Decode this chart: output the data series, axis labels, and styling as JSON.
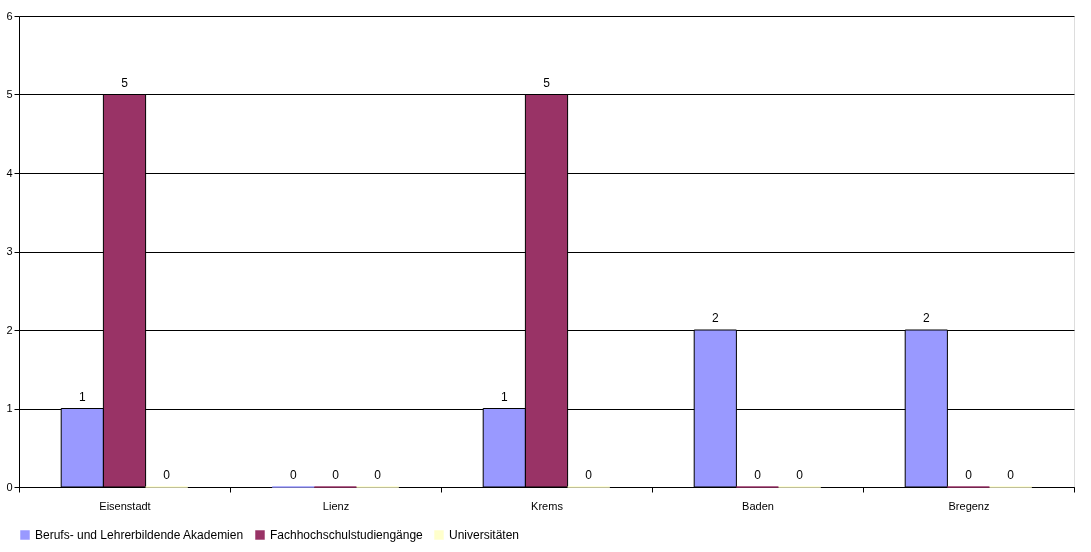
{
  "chart_data": {
    "type": "bar",
    "categories": [
      "Eisenstadt",
      "Lienz",
      "Krems",
      "Baden",
      "Bregenz"
    ],
    "series": [
      {
        "name": "Berufs- und Lehrerbildende Akademien",
        "color": "#9999ff",
        "values": [
          1,
          0,
          1,
          2,
          2
        ]
      },
      {
        "name": "Fachhochschulstudiengänge",
        "color": "#993366",
        "values": [
          5,
          0,
          5,
          0,
          0
        ]
      },
      {
        "name": "Universitäten",
        "color": "#ffffcc",
        "values": [
          0,
          0,
          0,
          0,
          0
        ]
      }
    ],
    "ylim": [
      0,
      6
    ],
    "yticks": [
      0,
      1,
      2,
      3,
      4,
      5,
      6
    ],
    "grid": "y",
    "legend": "bottom",
    "data_labels": true
  }
}
